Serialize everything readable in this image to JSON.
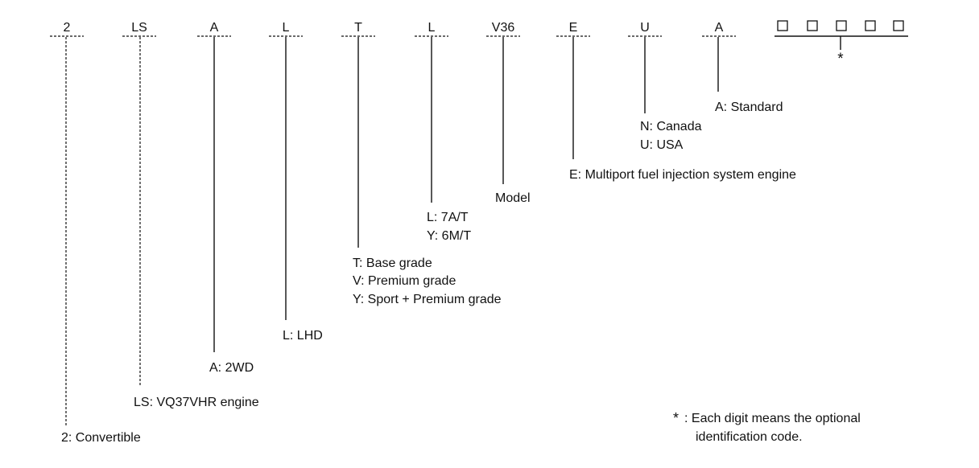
{
  "codes": [
    "2",
    "LS",
    "A",
    "L",
    "T",
    "L",
    "V36",
    "E",
    "U",
    "A"
  ],
  "descriptions": {
    "body": [
      "2: Convertible"
    ],
    "engine": [
      "LS: VQ37VHR engine"
    ],
    "drive": [
      "A: 2WD"
    ],
    "steering": [
      "L: LHD"
    ],
    "grade": [
      "T: Base grade",
      "V: Premium grade",
      "Y: Sport + Premium grade"
    ],
    "transmission": [
      "L: 7A/T",
      "Y: 6M/T"
    ],
    "model": [
      "Model"
    ],
    "fuel_system": [
      "E: Multiport fuel injection system engine"
    ],
    "destination": [
      "N: Canada",
      "U: USA"
    ],
    "spec": [
      "A: Standard"
    ]
  },
  "optional_code": {
    "star": "*",
    "note_star": "*",
    "note_lines": [
      ": Each digit means the optional",
      "identification code."
    ]
  }
}
